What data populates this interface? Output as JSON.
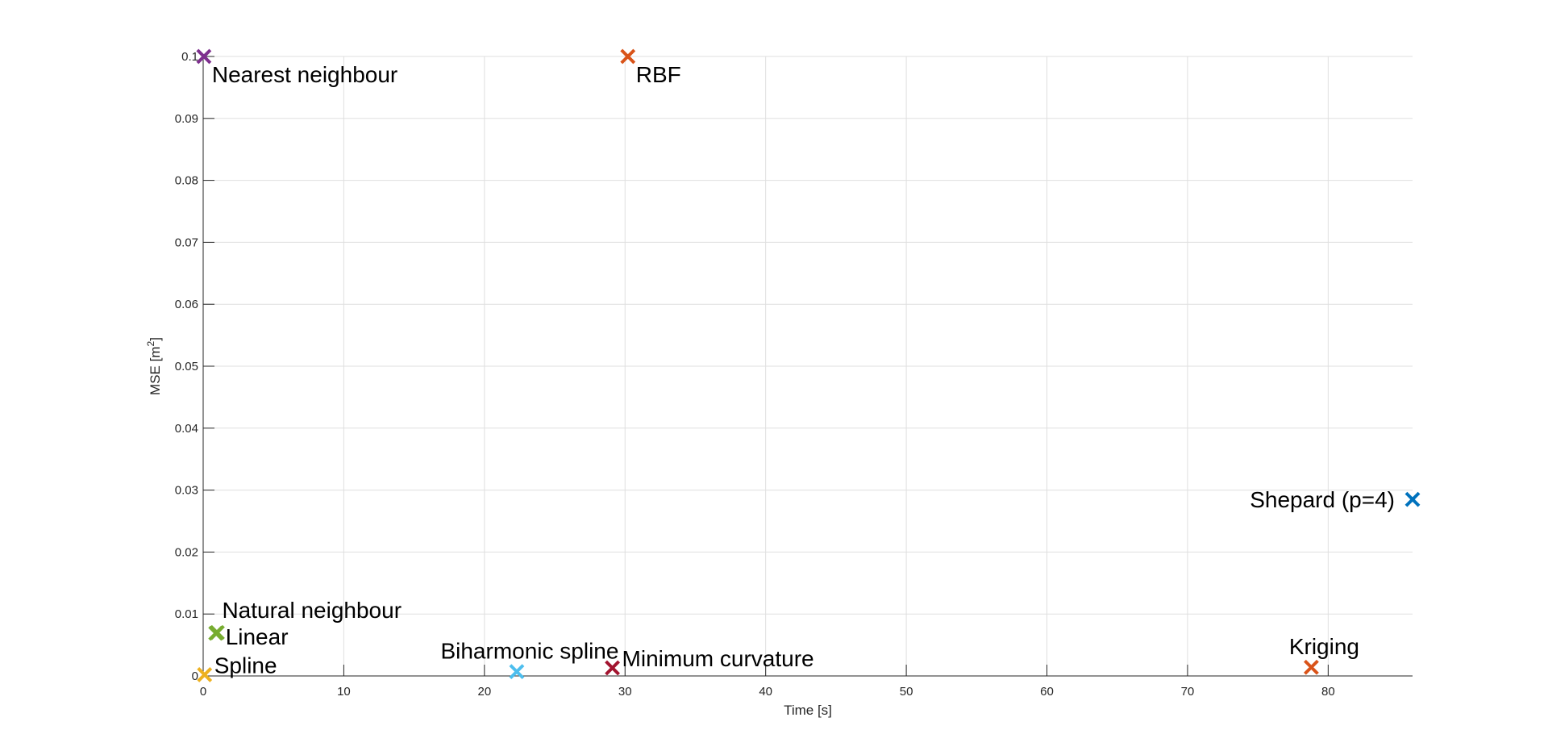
{
  "chart_data": {
    "type": "scatter",
    "xlabel": "Time [s]",
    "ylabel": "MSE [m",
    "ylabel_superscript": "2",
    "ylabel_suffix": "]",
    "xlim": [
      0,
      86
    ],
    "ylim": [
      0,
      0.1
    ],
    "grid": true,
    "x_ticks": [
      "0",
      "10",
      "20",
      "30",
      "40",
      "50",
      "60",
      "70",
      "80"
    ],
    "y_ticks": [
      "0",
      "0.01",
      "0.02",
      "0.03",
      "0.04",
      "0.05",
      "0.06",
      "0.07",
      "0.08",
      "0.09",
      "0.1"
    ],
    "points": [
      {
        "label": "Nearest neighbour",
        "x": 0.05,
        "y": 0.1,
        "color": "#7E2F8E",
        "label_pos": "below-right"
      },
      {
        "label": "RBF",
        "x": 30.2,
        "y": 0.1,
        "color": "#D95319",
        "label_pos": "below-right"
      },
      {
        "label": "Shepard (p=4)",
        "x": 86,
        "y": 0.0285,
        "color": "#0072BD",
        "label_pos": "left"
      },
      {
        "label": "Natural neighbour",
        "x": 1.0,
        "y": 0.007,
        "color": "#77AC30",
        "label_pos": "above-right"
      },
      {
        "label": "Linear",
        "x": 0.9,
        "y": 0.0069,
        "color": "#77AC30",
        "label_pos": "right-low"
      },
      {
        "label": "Spline",
        "x": 0.1,
        "y": 0.0002,
        "color": "#EDB120",
        "label_pos": "right"
      },
      {
        "label": "Biharmonic spline",
        "x": 22.3,
        "y": 0.0007,
        "color": "#4DBEEE",
        "label_pos": "above"
      },
      {
        "label": "Minimum curvature",
        "x": 29.1,
        "y": 0.0013,
        "color": "#A2142F",
        "label_pos": "right"
      },
      {
        "label": "Kriging",
        "x": 78.8,
        "y": 0.0014,
        "color": "#D95319",
        "label_pos": "above"
      }
    ]
  }
}
